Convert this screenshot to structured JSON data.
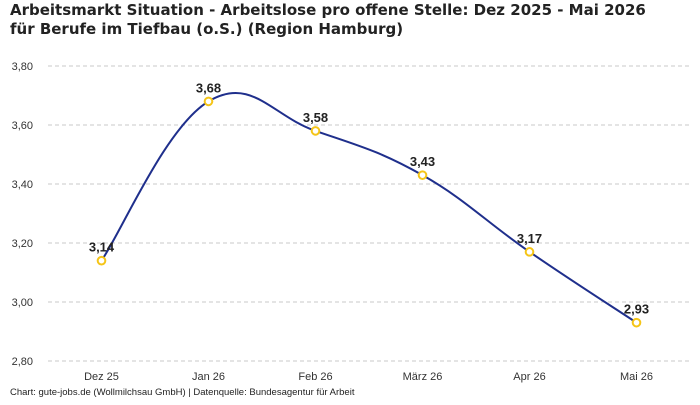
{
  "chart_data": {
    "type": "line",
    "title": "Arbeitsmarkt Situation - Arbeitslose pro offene Stelle: Dez 2025 - Mai 2026 für Berufe im Tiefbau (o.S.) (Region Hamburg)",
    "categories": [
      "Dez 25",
      "Jan 26",
      "Feb 26",
      "März 26",
      "Apr 26",
      "Mai 26"
    ],
    "series": [
      {
        "values": [
          3.14,
          3.68,
          3.58,
          3.43,
          3.17,
          2.93
        ]
      }
    ],
    "data_labels": [
      "3,14",
      "3,68",
      "3,58",
      "3,43",
      "3,17",
      "2,93"
    ],
    "ylim": [
      2.8,
      3.8
    ],
    "yticks": [
      2.8,
      3.0,
      3.2,
      3.4,
      3.6,
      3.8
    ],
    "ytick_labels": [
      "2,80",
      "3,00",
      "3,20",
      "3,40",
      "3,60",
      "3,80"
    ],
    "xlabel": "",
    "ylabel": "",
    "grid": true,
    "line_color": "#1f2f8c",
    "marker_color": "#f5c518",
    "grid_color": "#c8c8c8"
  },
  "footer": {
    "source_text": "Chart: gute-jobs.de (Wollmilchsau GmbH) | Datenquelle: Bundesagentur für Arbeit"
  }
}
